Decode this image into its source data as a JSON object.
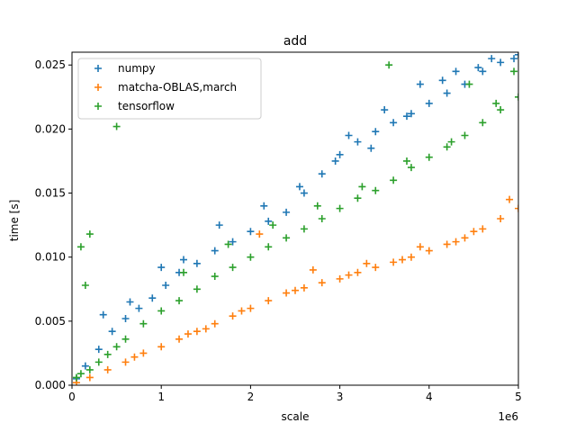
{
  "chart_data": {
    "type": "scatter",
    "title": "add",
    "xlabel": "scale",
    "ylabel": "time [s]",
    "x_offset_label": "1e6",
    "xlim": [
      0,
      5000000
    ],
    "ylim": [
      0,
      0.026
    ],
    "x_ticks": [
      0,
      1000000,
      2000000,
      3000000,
      4000000,
      5000000
    ],
    "x_tick_labels": [
      "0",
      "1",
      "2",
      "3",
      "4",
      "5"
    ],
    "y_ticks": [
      0,
      0.005,
      0.01,
      0.015,
      0.02,
      0.025
    ],
    "y_tick_labels": [
      "0.000",
      "0.005",
      "0.010",
      "0.015",
      "0.020",
      "0.025"
    ],
    "grid": false,
    "legend_position": "upper-left",
    "marker": "plus",
    "series": [
      {
        "name": "numpy",
        "color": "#1f77b4",
        "x": [
          50000,
          150000,
          300000,
          450000,
          600000,
          750000,
          900000,
          1050000,
          1200000,
          1400000,
          1600000,
          1800000,
          2000000,
          2200000,
          2400000,
          2600000,
          2800000,
          3000000,
          3200000,
          3400000,
          3600000,
          3800000,
          4000000,
          4200000,
          4400000,
          4600000,
          4800000,
          5000000,
          1000000,
          1250000,
          1650000,
          2150000,
          2550000,
          2950000,
          3350000,
          3750000,
          4150000,
          4550000,
          4950000,
          3100000,
          3500000,
          3900000,
          4300000,
          4700000,
          350000,
          650000
        ],
        "y": [
          0.0005,
          0.0015,
          0.0028,
          0.0042,
          0.0052,
          0.006,
          0.0068,
          0.0078,
          0.0088,
          0.0095,
          0.0105,
          0.0112,
          0.012,
          0.0128,
          0.0135,
          0.015,
          0.0165,
          0.018,
          0.019,
          0.0198,
          0.0205,
          0.0212,
          0.022,
          0.0228,
          0.0235,
          0.0245,
          0.0252,
          0.0258,
          0.0092,
          0.0098,
          0.0125,
          0.014,
          0.0155,
          0.0175,
          0.0185,
          0.021,
          0.0238,
          0.0248,
          0.0255,
          0.0195,
          0.0215,
          0.0235,
          0.0245,
          0.0255,
          0.0055,
          0.0065
        ]
      },
      {
        "name": "matcha-OBLAS,march",
        "color": "#ff7f0e",
        "x": [
          50000,
          200000,
          400000,
          600000,
          800000,
          1000000,
          1200000,
          1400000,
          1600000,
          1800000,
          2000000,
          2200000,
          2400000,
          2600000,
          2800000,
          3000000,
          3200000,
          3400000,
          3600000,
          3800000,
          4000000,
          4200000,
          4400000,
          4600000,
          4800000,
          5000000,
          700000,
          1300000,
          1900000,
          2500000,
          3100000,
          3700000,
          4300000,
          4900000,
          2100000,
          2700000,
          3300000,
          3900000,
          4500000,
          1500000
        ],
        "y": [
          0.0002,
          0.0006,
          0.0012,
          0.0018,
          0.0025,
          0.003,
          0.0036,
          0.0042,
          0.0048,
          0.0054,
          0.006,
          0.0066,
          0.0072,
          0.0076,
          0.008,
          0.0083,
          0.0088,
          0.0092,
          0.0096,
          0.01,
          0.0105,
          0.011,
          0.0115,
          0.0122,
          0.013,
          0.0138,
          0.0022,
          0.004,
          0.0058,
          0.0074,
          0.0086,
          0.0098,
          0.0112,
          0.0145,
          0.0118,
          0.009,
          0.0095,
          0.0108,
          0.012,
          0.0044
        ]
      },
      {
        "name": "tensorflow",
        "color": "#2ca02c",
        "x": [
          50000,
          100000,
          200000,
          300000,
          400000,
          500000,
          600000,
          800000,
          1000000,
          1200000,
          1400000,
          1600000,
          1800000,
          2000000,
          2200000,
          2400000,
          2600000,
          2800000,
          3000000,
          3200000,
          3400000,
          3600000,
          3800000,
          4000000,
          4200000,
          4400000,
          4600000,
          4800000,
          5000000,
          200000,
          500000,
          100000,
          150000,
          1250000,
          1750000,
          2250000,
          2750000,
          3250000,
          3750000,
          4250000,
          4750000,
          3550000,
          4450000,
          4950000
        ],
        "y": [
          0.0006,
          0.0009,
          0.0012,
          0.0018,
          0.0024,
          0.003,
          0.0036,
          0.0048,
          0.0058,
          0.0066,
          0.0075,
          0.0085,
          0.0092,
          0.01,
          0.0108,
          0.0115,
          0.0122,
          0.013,
          0.0138,
          0.0146,
          0.0152,
          0.016,
          0.017,
          0.0178,
          0.0186,
          0.0195,
          0.0205,
          0.0215,
          0.0225,
          0.0118,
          0.0202,
          0.0108,
          0.0078,
          0.0088,
          0.011,
          0.0125,
          0.014,
          0.0155,
          0.0175,
          0.019,
          0.022,
          0.025,
          0.0235,
          0.0245
        ]
      }
    ]
  }
}
